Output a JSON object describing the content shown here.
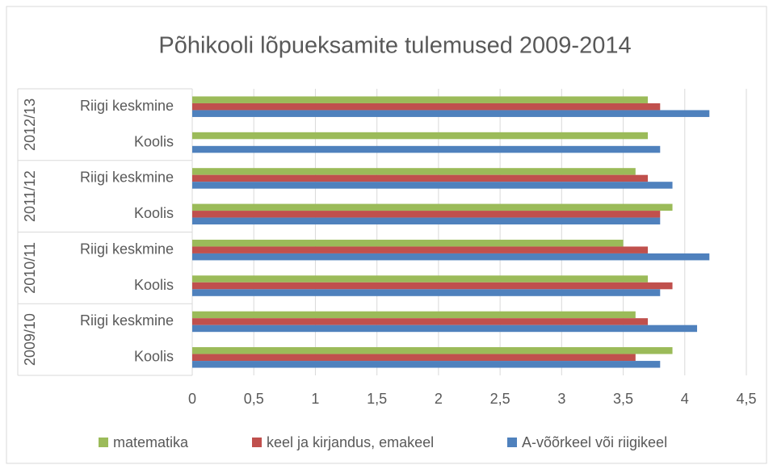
{
  "chart_data": {
    "type": "barh",
    "title": "Põhikooli lõpueksamite tulemused 2009-2014",
    "groups": [
      {
        "name": "2012/13",
        "categories": [
          "Riigi keskmine",
          "Koolis"
        ]
      },
      {
        "name": "2011/12",
        "categories": [
          "Riigi keskmine",
          "Koolis"
        ]
      },
      {
        "name": "2010/11",
        "categories": [
          "Riigi keskmine",
          "Koolis"
        ]
      },
      {
        "name": "2009/10",
        "categories": [
          "Riigi keskmine",
          "Koolis"
        ]
      }
    ],
    "series": [
      {
        "name": "matematika",
        "color": "#9bbb59",
        "values": [
          3.7,
          3.7,
          3.6,
          3.9,
          3.5,
          3.7,
          3.6,
          3.9
        ]
      },
      {
        "name": "keel ja kirjandus, emakeel",
        "color": "#c0504d",
        "values": [
          3.8,
          null,
          3.7,
          3.8,
          3.7,
          3.9,
          3.7,
          3.6
        ]
      },
      {
        "name": "A-võõrkeel või riigikeel",
        "color": "#4f81bd",
        "values": [
          4.2,
          3.8,
          3.9,
          3.8,
          4.2,
          3.8,
          4.1,
          3.8
        ]
      }
    ],
    "xlim": [
      0,
      4.5
    ],
    "xticks": [
      0,
      {
        "value": 0.5,
        "label": "0,5"
      },
      1,
      {
        "value": 1.5,
        "label": "1,5"
      },
      2,
      {
        "value": 2.5,
        "label": "2,5"
      },
      3,
      {
        "value": 3.5,
        "label": "3,5"
      },
      4,
      {
        "value": 4.5,
        "label": "4,5"
      }
    ],
    "grid": true,
    "legend": "bottom"
  }
}
